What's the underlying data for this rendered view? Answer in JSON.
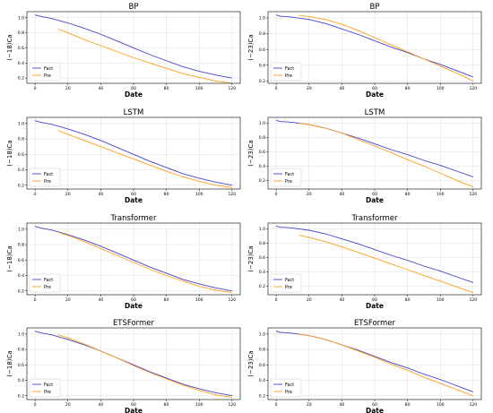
{
  "colors": {
    "fact": "#4444cc",
    "pre": "#ff9f1c"
  },
  "chart_data": [
    {
      "type": "line",
      "title": "BP",
      "xlabel": "Date",
      "ylabel": "(−18)Ca",
      "xlim": [
        -5,
        125
      ],
      "ylim": [
        0.13,
        1.08
      ],
      "xticks": [
        0,
        20,
        40,
        60,
        80,
        100,
        120
      ],
      "yticks": [
        0.2,
        0.4,
        0.6,
        0.8,
        1.0
      ],
      "legend": "lower-left",
      "grid": true,
      "series": [
        {
          "name": "Fact",
          "x": [
            0,
            1,
            3,
            5,
            10,
            20,
            30,
            40,
            50,
            60,
            70,
            80,
            90,
            100,
            110,
            120
          ],
          "y": [
            1.04,
            1.03,
            1.02,
            1.01,
            0.99,
            0.93,
            0.86,
            0.78,
            0.69,
            0.6,
            0.51,
            0.43,
            0.35,
            0.29,
            0.24,
            0.2
          ]
        },
        {
          "name": "Pre",
          "x": [
            14,
            20,
            30,
            40,
            50,
            60,
            70,
            80,
            90,
            100,
            110,
            120
          ],
          "y": [
            0.85,
            0.8,
            0.71,
            0.63,
            0.55,
            0.47,
            0.4,
            0.33,
            0.26,
            0.21,
            0.16,
            0.13
          ]
        }
      ]
    },
    {
      "type": "line",
      "title": "BP",
      "xlabel": "Date",
      "ylabel": "(−23)Ca",
      "xlim": [
        -5,
        125
      ],
      "ylim": [
        0.17,
        1.08
      ],
      "xticks": [
        0,
        20,
        40,
        60,
        80,
        100,
        120
      ],
      "yticks": [
        0.2,
        0.4,
        0.6,
        0.8,
        1.0
      ],
      "legend": "lower-left",
      "grid": true,
      "series": [
        {
          "name": "Fact",
          "x": [
            0,
            1,
            3,
            5,
            10,
            20,
            30,
            40,
            50,
            60,
            70,
            80,
            90,
            100,
            110,
            120
          ],
          "y": [
            1.04,
            1.03,
            1.02,
            1.02,
            1.01,
            0.98,
            0.93,
            0.86,
            0.79,
            0.71,
            0.63,
            0.56,
            0.48,
            0.41,
            0.33,
            0.25
          ]
        },
        {
          "name": "Pre",
          "x": [
            14,
            20,
            30,
            40,
            50,
            60,
            70,
            80,
            90,
            100,
            110,
            120
          ],
          "y": [
            1.03,
            1.02,
            0.98,
            0.92,
            0.84,
            0.75,
            0.66,
            0.57,
            0.48,
            0.39,
            0.3,
            0.2
          ]
        }
      ]
    },
    {
      "type": "line",
      "title": "LSTM",
      "xlabel": "Date",
      "ylabel": "(−18)Ca",
      "xlim": [
        -5,
        125
      ],
      "ylim": [
        0.15,
        1.08
      ],
      "xticks": [
        0,
        20,
        40,
        60,
        80,
        100,
        120
      ],
      "yticks": [
        0.2,
        0.4,
        0.6,
        0.8,
        1.0
      ],
      "legend": "lower-left",
      "grid": true,
      "series": [
        {
          "name": "Fact",
          "x": [
            0,
            1,
            3,
            5,
            10,
            20,
            30,
            40,
            50,
            60,
            70,
            80,
            90,
            100,
            110,
            120
          ],
          "y": [
            1.04,
            1.03,
            1.02,
            1.01,
            0.99,
            0.93,
            0.86,
            0.78,
            0.69,
            0.6,
            0.51,
            0.43,
            0.35,
            0.29,
            0.24,
            0.2
          ]
        },
        {
          "name": "Pre",
          "x": [
            14,
            20,
            30,
            40,
            50,
            60,
            70,
            80,
            90,
            100,
            110,
            120
          ],
          "y": [
            0.91,
            0.86,
            0.78,
            0.7,
            0.62,
            0.54,
            0.46,
            0.38,
            0.31,
            0.25,
            0.2,
            0.17
          ]
        }
      ]
    },
    {
      "type": "line",
      "title": "LSTM",
      "xlabel": "Date",
      "ylabel": "(−23)Ca",
      "xlim": [
        -5,
        125
      ],
      "ylim": [
        0.08,
        1.08
      ],
      "xticks": [
        0,
        20,
        40,
        60,
        80,
        100,
        120
      ],
      "yticks": [
        0.2,
        0.4,
        0.6,
        0.8,
        1.0
      ],
      "legend": "lower-left",
      "grid": true,
      "series": [
        {
          "name": "Fact",
          "x": [
            0,
            1,
            3,
            5,
            10,
            20,
            30,
            40,
            50,
            60,
            70,
            80,
            90,
            100,
            110,
            120
          ],
          "y": [
            1.04,
            1.03,
            1.02,
            1.02,
            1.01,
            0.98,
            0.93,
            0.86,
            0.79,
            0.71,
            0.63,
            0.56,
            0.48,
            0.41,
            0.33,
            0.25
          ]
        },
        {
          "name": "Pre",
          "x": [
            14,
            20,
            30,
            40,
            50,
            60,
            70,
            80,
            90,
            100,
            110,
            120
          ],
          "y": [
            1.0,
            0.98,
            0.93,
            0.86,
            0.77,
            0.68,
            0.59,
            0.49,
            0.4,
            0.3,
            0.2,
            0.11
          ]
        }
      ]
    },
    {
      "type": "line",
      "title": "Transformer",
      "xlabel": "Date",
      "ylabel": "(−18)Ca",
      "xlim": [
        -5,
        125
      ],
      "ylim": [
        0.15,
        1.08
      ],
      "xticks": [
        0,
        20,
        40,
        60,
        80,
        100,
        120
      ],
      "yticks": [
        0.2,
        0.4,
        0.6,
        0.8,
        1.0
      ],
      "legend": "lower-left",
      "grid": true,
      "series": [
        {
          "name": "Fact",
          "x": [
            0,
            1,
            3,
            5,
            10,
            20,
            30,
            40,
            50,
            60,
            70,
            80,
            90,
            100,
            110,
            120
          ],
          "y": [
            1.04,
            1.03,
            1.02,
            1.01,
            0.99,
            0.93,
            0.86,
            0.78,
            0.69,
            0.6,
            0.51,
            0.43,
            0.35,
            0.29,
            0.24,
            0.2
          ]
        },
        {
          "name": "Pre",
          "x": [
            14,
            20,
            30,
            40,
            50,
            60,
            70,
            80,
            90,
            100,
            110,
            120
          ],
          "y": [
            0.96,
            0.92,
            0.84,
            0.75,
            0.66,
            0.57,
            0.48,
            0.4,
            0.33,
            0.26,
            0.21,
            0.18
          ]
        }
      ]
    },
    {
      "type": "line",
      "title": "Transformer",
      "xlabel": "Date",
      "ylabel": "(−23)Ca",
      "xlim": [
        -5,
        125
      ],
      "ylim": [
        0.08,
        1.08
      ],
      "xticks": [
        0,
        20,
        40,
        60,
        80,
        100,
        120
      ],
      "yticks": [
        0.2,
        0.4,
        0.6,
        0.8,
        1.0
      ],
      "legend": "lower-left",
      "grid": true,
      "series": [
        {
          "name": "Fact",
          "x": [
            0,
            1,
            3,
            5,
            10,
            20,
            30,
            40,
            50,
            60,
            70,
            80,
            90,
            100,
            110,
            120
          ],
          "y": [
            1.04,
            1.03,
            1.02,
            1.02,
            1.01,
            0.98,
            0.93,
            0.86,
            0.79,
            0.71,
            0.63,
            0.56,
            0.48,
            0.41,
            0.33,
            0.25
          ]
        },
        {
          "name": "Pre",
          "x": [
            14,
            20,
            30,
            40,
            50,
            60,
            70,
            80,
            90,
            100,
            110,
            120
          ],
          "y": [
            0.91,
            0.88,
            0.82,
            0.75,
            0.67,
            0.59,
            0.51,
            0.43,
            0.35,
            0.27,
            0.19,
            0.11
          ]
        }
      ]
    },
    {
      "type": "line",
      "title": "ETSFormer",
      "xlabel": "Date",
      "ylabel": "(−18)Ca",
      "xlim": [
        -5,
        125
      ],
      "ylim": [
        0.15,
        1.08
      ],
      "xticks": [
        0,
        20,
        40,
        60,
        80,
        100,
        120
      ],
      "yticks": [
        0.2,
        0.4,
        0.6,
        0.8,
        1.0
      ],
      "legend": "lower-left",
      "grid": true,
      "series": [
        {
          "name": "Fact",
          "x": [
            0,
            1,
            3,
            5,
            10,
            20,
            30,
            40,
            50,
            60,
            70,
            80,
            90,
            100,
            110,
            120
          ],
          "y": [
            1.04,
            1.03,
            1.02,
            1.01,
            0.99,
            0.93,
            0.86,
            0.78,
            0.69,
            0.6,
            0.51,
            0.43,
            0.35,
            0.29,
            0.24,
            0.2
          ]
        },
        {
          "name": "Pre",
          "x": [
            14,
            20,
            30,
            40,
            50,
            60,
            70,
            80,
            90,
            100,
            110,
            120
          ],
          "y": [
            0.99,
            0.95,
            0.87,
            0.78,
            0.69,
            0.59,
            0.5,
            0.42,
            0.34,
            0.27,
            0.21,
            0.18
          ]
        }
      ]
    },
    {
      "type": "line",
      "title": "ETSFormer",
      "xlabel": "Date",
      "ylabel": "(−23)Ca",
      "xlim": [
        -5,
        125
      ],
      "ylim": [
        0.15,
        1.08
      ],
      "xticks": [
        0,
        20,
        40,
        60,
        80,
        100,
        120
      ],
      "yticks": [
        0.2,
        0.4,
        0.6,
        0.8,
        1.0
      ],
      "legend": "lower-left",
      "grid": true,
      "series": [
        {
          "name": "Fact",
          "x": [
            0,
            1,
            3,
            5,
            10,
            20,
            30,
            40,
            50,
            60,
            70,
            80,
            90,
            100,
            110,
            120
          ],
          "y": [
            1.04,
            1.03,
            1.02,
            1.02,
            1.01,
            0.98,
            0.93,
            0.86,
            0.79,
            0.71,
            0.63,
            0.56,
            0.48,
            0.41,
            0.33,
            0.25
          ]
        },
        {
          "name": "Pre",
          "x": [
            14,
            20,
            30,
            40,
            50,
            60,
            70,
            80,
            90,
            100,
            110,
            120
          ],
          "y": [
            1.0,
            0.98,
            0.93,
            0.86,
            0.78,
            0.7,
            0.61,
            0.53,
            0.44,
            0.36,
            0.28,
            0.2
          ]
        }
      ]
    }
  ]
}
